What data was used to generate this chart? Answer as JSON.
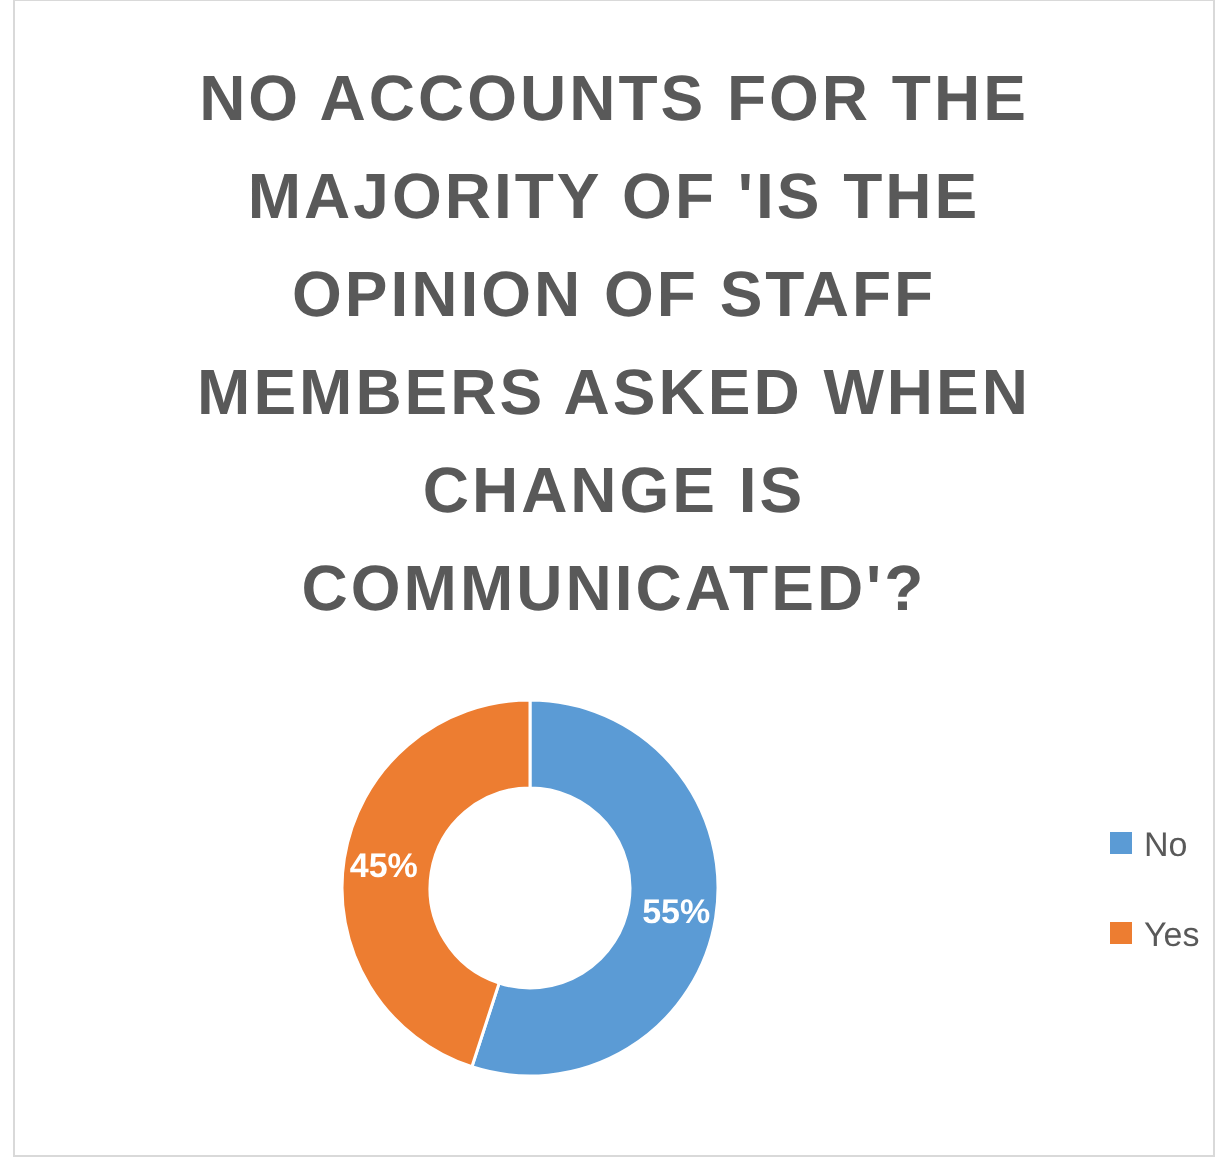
{
  "chart_data": {
    "type": "donut",
    "title": "NO ACCOUNTS FOR THE MAJORITY OF 'IS THE OPINION OF STAFF MEMBERS ASKED WHEN CHANGE IS COMMUNICATED'?",
    "categories": [
      "No",
      "Yes"
    ],
    "values": [
      55,
      45
    ],
    "colors": [
      "#5b9bd5",
      "#ed7d31"
    ],
    "value_labels": [
      "55%",
      "45%"
    ],
    "legend": "right"
  }
}
